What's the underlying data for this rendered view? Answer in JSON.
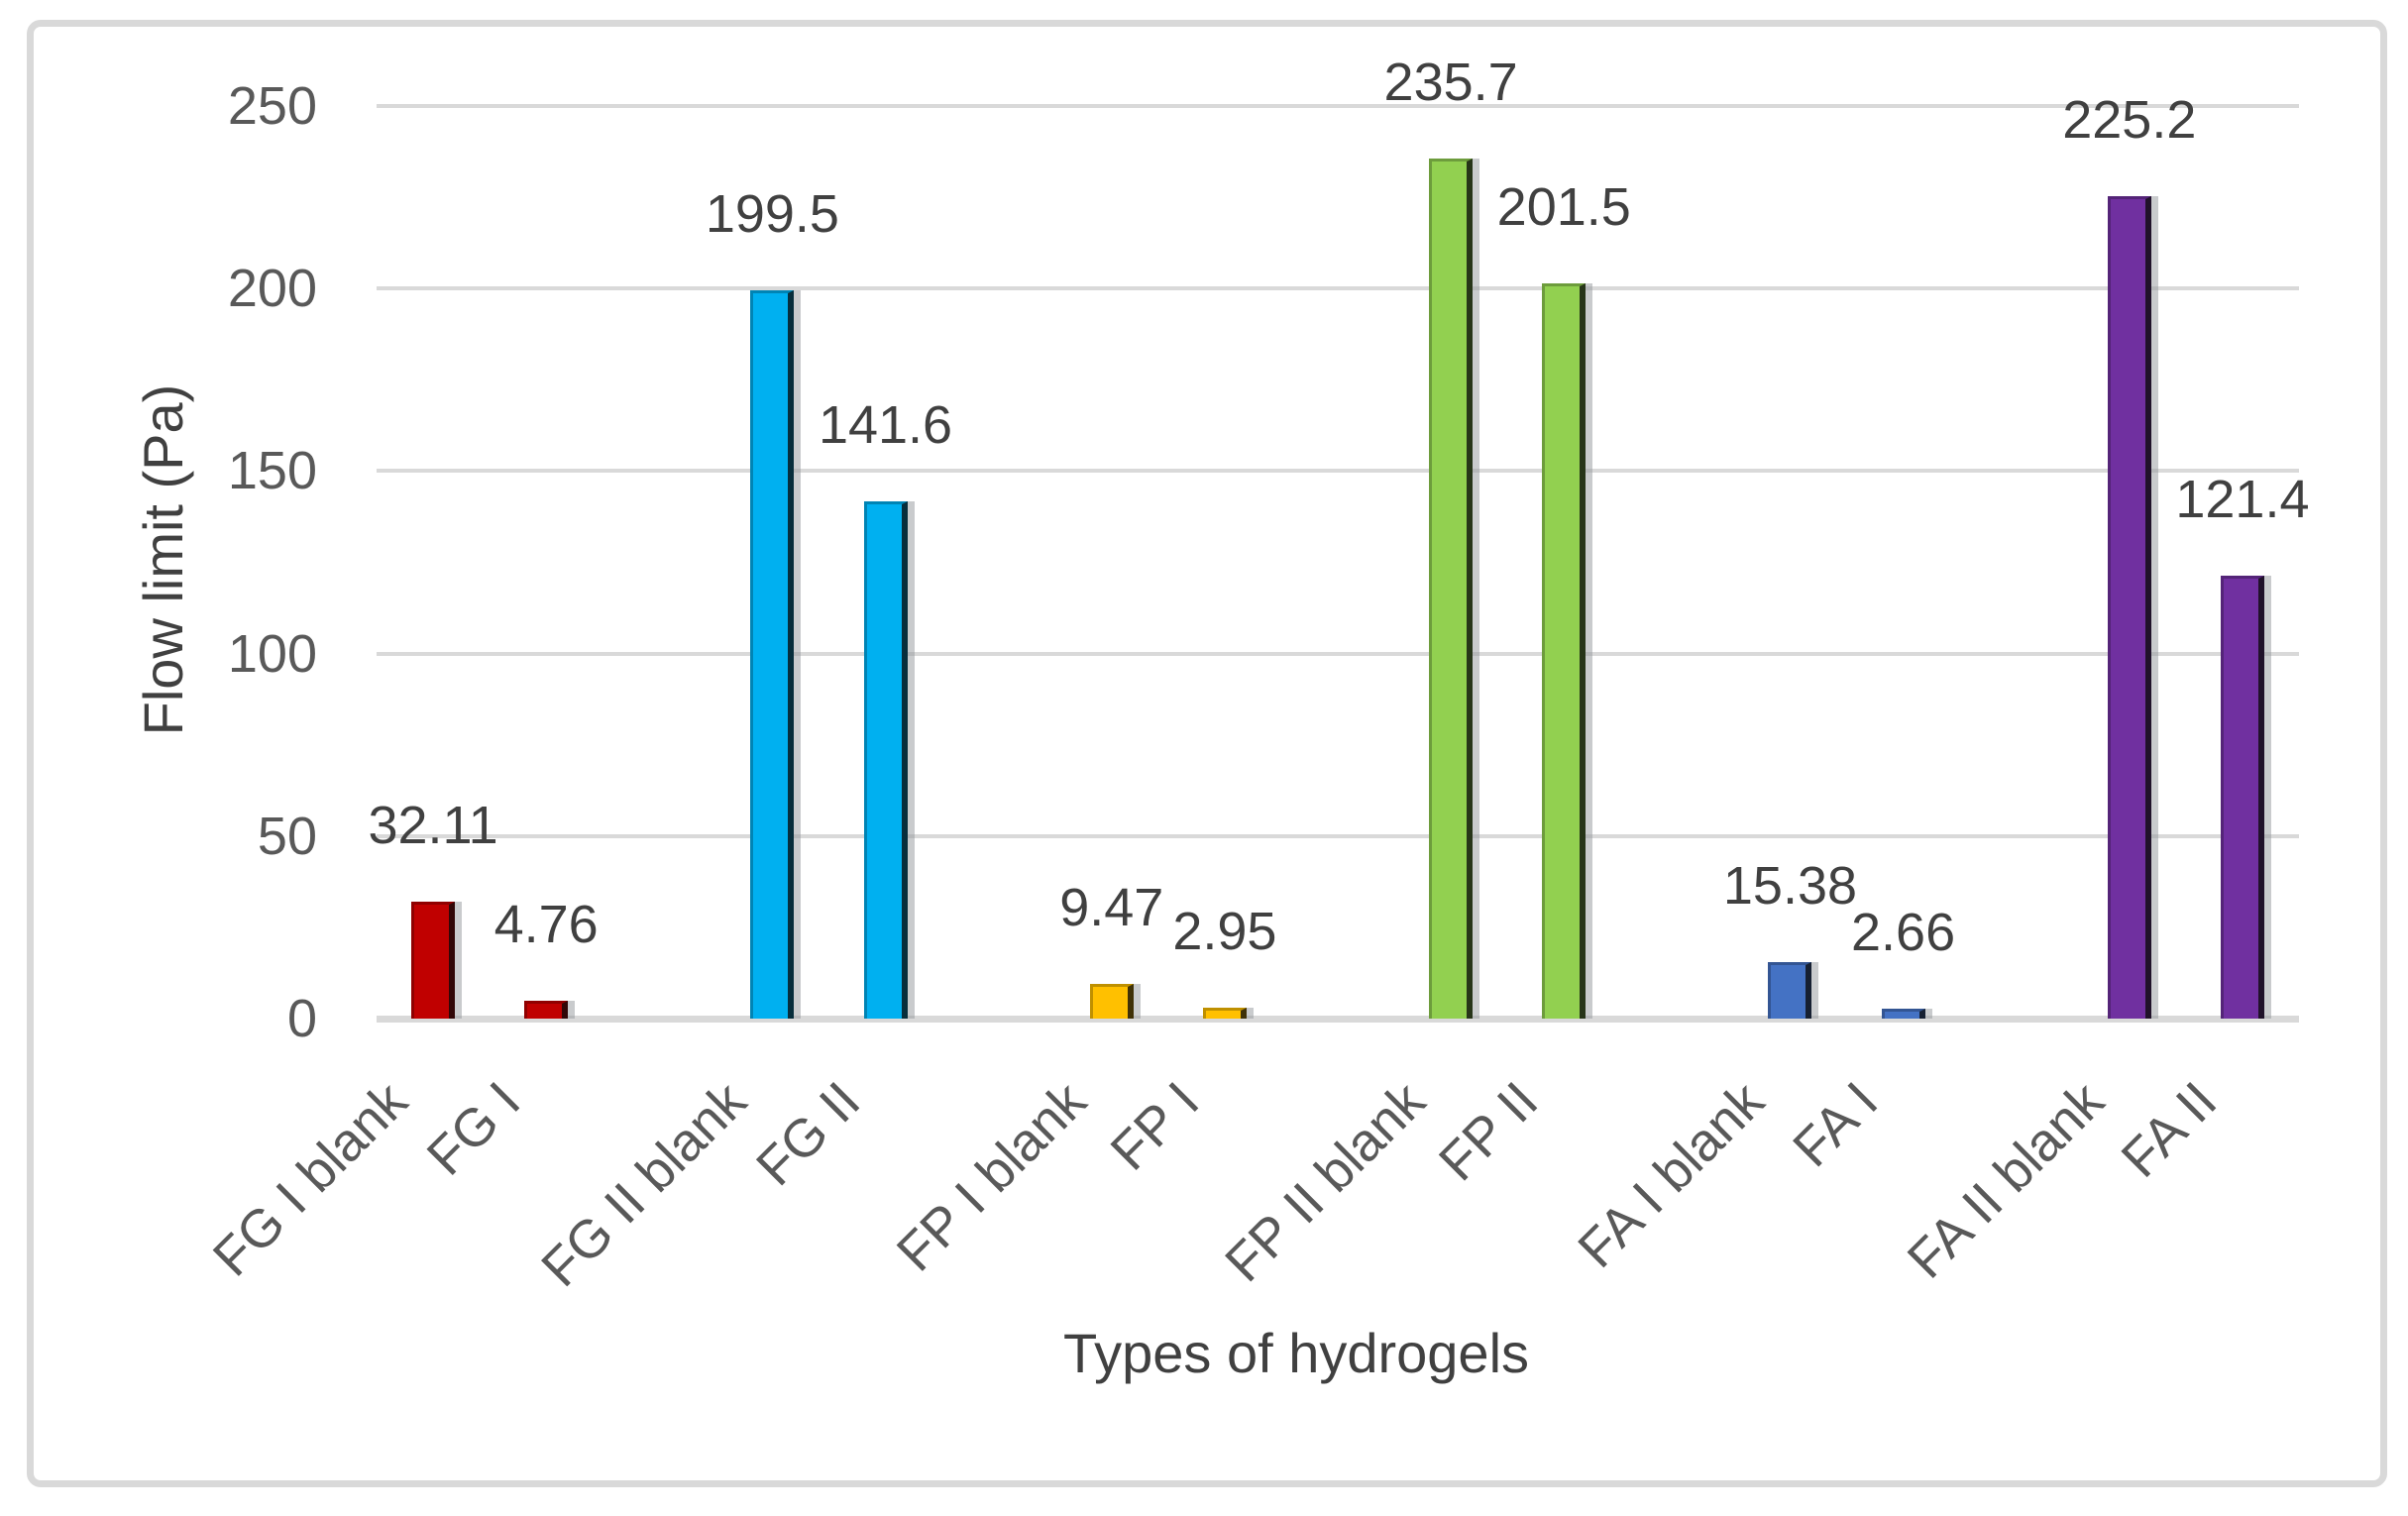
{
  "figure": {
    "xaxis_title": "Types of hydrogels",
    "yaxis_title": "Flow limit (Pa)"
  },
  "chart_data": {
    "type": "bar",
    "title": "",
    "xlabel": "Types of hydrogels",
    "ylabel": "Flow limit (Pa)",
    "categories": [
      "FG I blank",
      "FG I",
      "FG II blank",
      "FG II",
      "FP I blank",
      "FP I",
      "FP II blank",
      "FP II",
      "FA I blank",
      "FA I",
      "FA II blank",
      "FA II"
    ],
    "values": [
      32.11,
      4.76,
      199.5,
      141.6,
      9.47,
      2.95,
      235.7,
      201.5,
      15.38,
      2.66,
      225.2,
      121.4
    ],
    "value_labels": [
      "32.11",
      "4.76",
      "199.5",
      "141.6",
      "9.47",
      "2.95",
      "235.7",
      "201.5",
      "15.38",
      "2.66",
      "225.2",
      "121.4"
    ],
    "bar_colors": [
      "#C00000",
      "#C00000",
      "#00B0F0",
      "#00B0F0",
      "#FFC000",
      "#FFC000",
      "#92D050",
      "#92D050",
      "#4472C4",
      "#4472C4",
      "#7030A0",
      "#7030A0"
    ],
    "group_pairing": "bars grouped in pairs (blank + sample) with one empty slot between groups",
    "ylim": [
      0,
      250
    ],
    "ytick_step": 50,
    "ytick_labels": [
      "0",
      "50",
      "100",
      "150",
      "200",
      "250"
    ],
    "grid": true,
    "legend": false,
    "data_labels": true,
    "grid_color": "#D9D9D9",
    "tick_text_color": "#595959",
    "data_label_color": "#404040",
    "frame_color": "#D9D9D9"
  }
}
